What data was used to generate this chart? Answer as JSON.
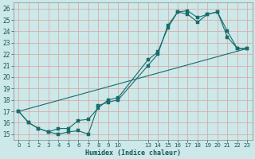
{
  "xlabel": "Humidex (Indice chaleur)",
  "bg_color": "#cce8e8",
  "grid_color": "#dda0a0",
  "line_color": "#1a6b6b",
  "xlim": [
    -0.5,
    23.5
  ],
  "ylim": [
    14.5,
    26.5
  ],
  "yticks": [
    15,
    16,
    17,
    18,
    19,
    20,
    21,
    22,
    23,
    24,
    25,
    26
  ],
  "xtick_positions": [
    0,
    1,
    2,
    3,
    4,
    5,
    6,
    7,
    8,
    9,
    10,
    13,
    14,
    15,
    16,
    17,
    18,
    19,
    20,
    21,
    22,
    23
  ],
  "xtick_labels": [
    "0",
    "1",
    "2",
    "3",
    "4",
    "5",
    "6",
    "7",
    "8",
    "9",
    "10",
    "13",
    "14",
    "15",
    "16",
    "17",
    "18",
    "19",
    "20",
    "21",
    "22",
    "23"
  ],
  "line1_x": [
    0,
    1,
    2,
    3,
    4,
    5,
    6,
    7,
    8,
    9,
    10,
    13,
    14,
    15,
    16,
    17,
    18,
    19,
    20,
    21,
    22,
    23
  ],
  "line1_y": [
    17.0,
    16.0,
    15.5,
    15.2,
    15.0,
    15.2,
    15.3,
    15.0,
    17.5,
    17.8,
    18.0,
    21.0,
    22.0,
    24.5,
    25.7,
    25.8,
    25.2,
    25.5,
    25.7,
    24.0,
    22.5,
    22.5
  ],
  "line2_x": [
    0,
    1,
    2,
    3,
    4,
    5,
    6,
    7,
    8,
    9,
    10,
    13,
    14,
    15,
    16,
    17,
    18,
    19,
    20,
    21,
    22,
    23
  ],
  "line2_y": [
    17.0,
    16.0,
    15.5,
    15.2,
    15.5,
    15.5,
    16.2,
    16.3,
    17.3,
    18.0,
    18.2,
    21.5,
    22.2,
    24.3,
    25.7,
    25.5,
    24.8,
    25.5,
    25.7,
    23.5,
    22.5,
    22.5
  ],
  "line3_x": [
    0,
    23
  ],
  "line3_y": [
    17.0,
    22.5
  ]
}
